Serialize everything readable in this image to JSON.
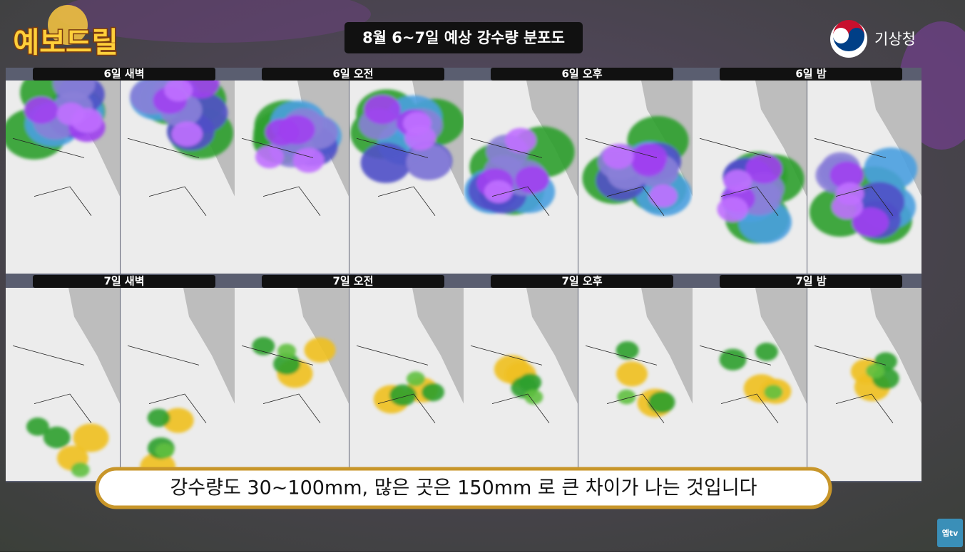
{
  "logo": "예보드릴",
  "title": "8월  6~7일 예상 강수량 분포도",
  "agency": "기상청",
  "panels": [
    {
      "label": "6일 새벽"
    },
    {
      "label": "6일 오전"
    },
    {
      "label": "6일 오후"
    },
    {
      "label": "6일 밤"
    },
    {
      "label": "7일 새벽"
    },
    {
      "label": "7일 오전"
    },
    {
      "label": "7일 오후"
    },
    {
      "label": "7일 밤"
    }
  ],
  "caption": "강수량도 30~100mm, 많은 곳은 150mm 로 큰 차이가 나는 것입니다",
  "watermark": "옙tv"
}
